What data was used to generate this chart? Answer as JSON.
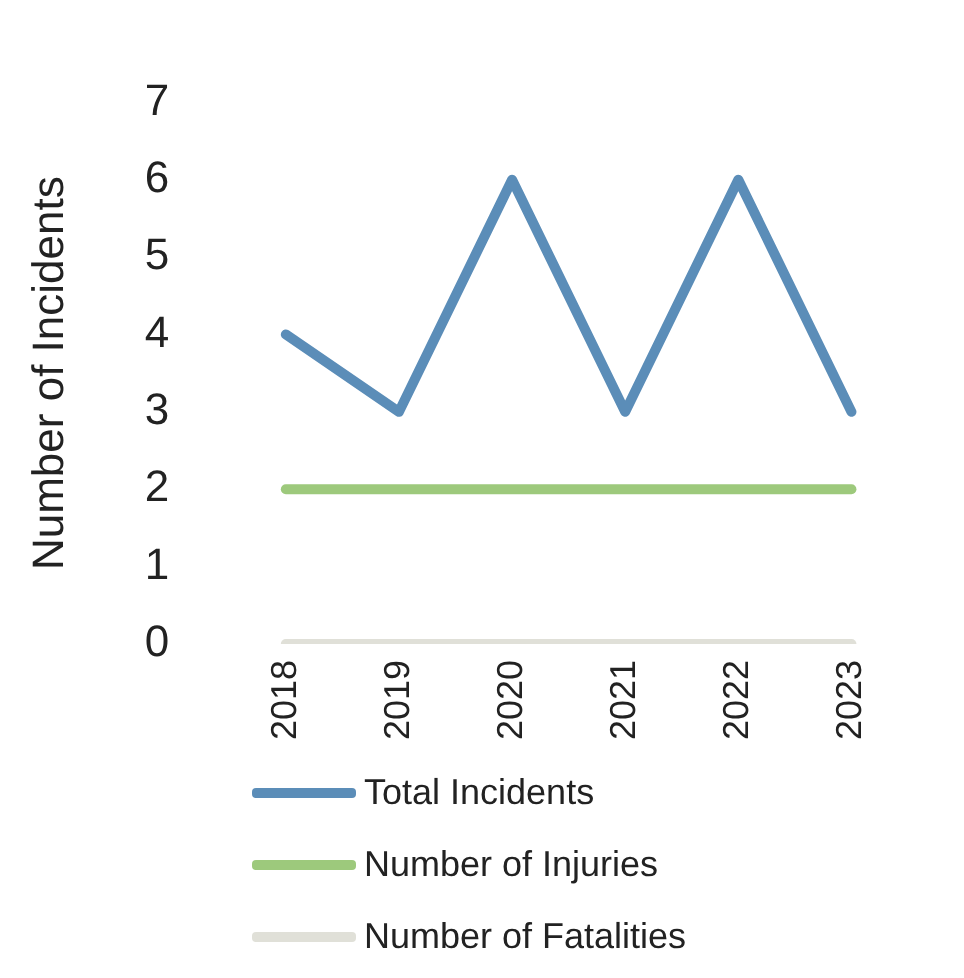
{
  "chart_data": {
    "type": "line",
    "ylabel": "Number of Incidents",
    "categories": [
      "2018",
      "2019",
      "2020",
      "2021",
      "2022",
      "2023"
    ],
    "series": [
      {
        "name": "Total Incidents",
        "color": "#5b8db8",
        "values": [
          4,
          3,
          6,
          3,
          6,
          3
        ]
      },
      {
        "name": "Number of Injuries",
        "color": "#9dc97c",
        "values": [
          2,
          2,
          2,
          2,
          2,
          2
        ]
      },
      {
        "name": "Number of Fatalities",
        "color": "#e0e0d8",
        "values": [
          0,
          0,
          0,
          0,
          0,
          0
        ]
      }
    ],
    "ylim": [
      0,
      7
    ],
    "yticks": [
      0,
      1,
      2,
      3,
      4,
      5,
      6,
      7
    ],
    "grid": false,
    "legend": "bottom",
    "marker": "none",
    "line_style": "solid"
  }
}
